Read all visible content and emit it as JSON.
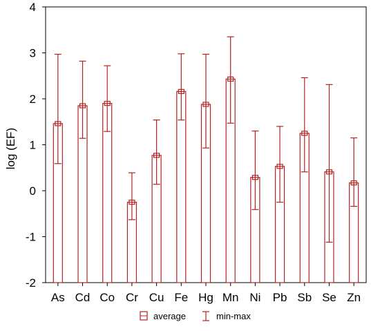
{
  "chart_data": {
    "type": "bar",
    "ylabel": "log (EF)",
    "ylim": [
      -2,
      4
    ],
    "yticks": [
      "4",
      "3",
      "2",
      "1",
      "0",
      "-1",
      "-2"
    ],
    "categories": [
      "As",
      "Cd",
      "Co",
      "Cr",
      "Cu",
      "Fe",
      "Hg",
      "Mn",
      "Ni",
      "Pb",
      "Sb",
      "Se",
      "Zn"
    ],
    "series": [
      {
        "name": "average",
        "values": [
          1.46,
          1.85,
          1.9,
          -0.25,
          0.77,
          2.16,
          1.88,
          2.43,
          0.29,
          0.53,
          1.25,
          0.41,
          0.17
        ]
      }
    ],
    "error_bars": {
      "name": "min-max",
      "min": [
        0.59,
        1.14,
        1.29,
        -0.63,
        0.14,
        1.54,
        0.93,
        1.47,
        -0.41,
        -0.25,
        0.41,
        -1.12,
        -0.34
      ],
      "max": [
        2.97,
        2.82,
        2.72,
        0.39,
        1.54,
        2.98,
        2.97,
        3.35,
        1.3,
        1.4,
        2.46,
        2.31,
        1.15
      ]
    },
    "legend_placement": "bottom",
    "grid": false,
    "color": "#b22222"
  }
}
